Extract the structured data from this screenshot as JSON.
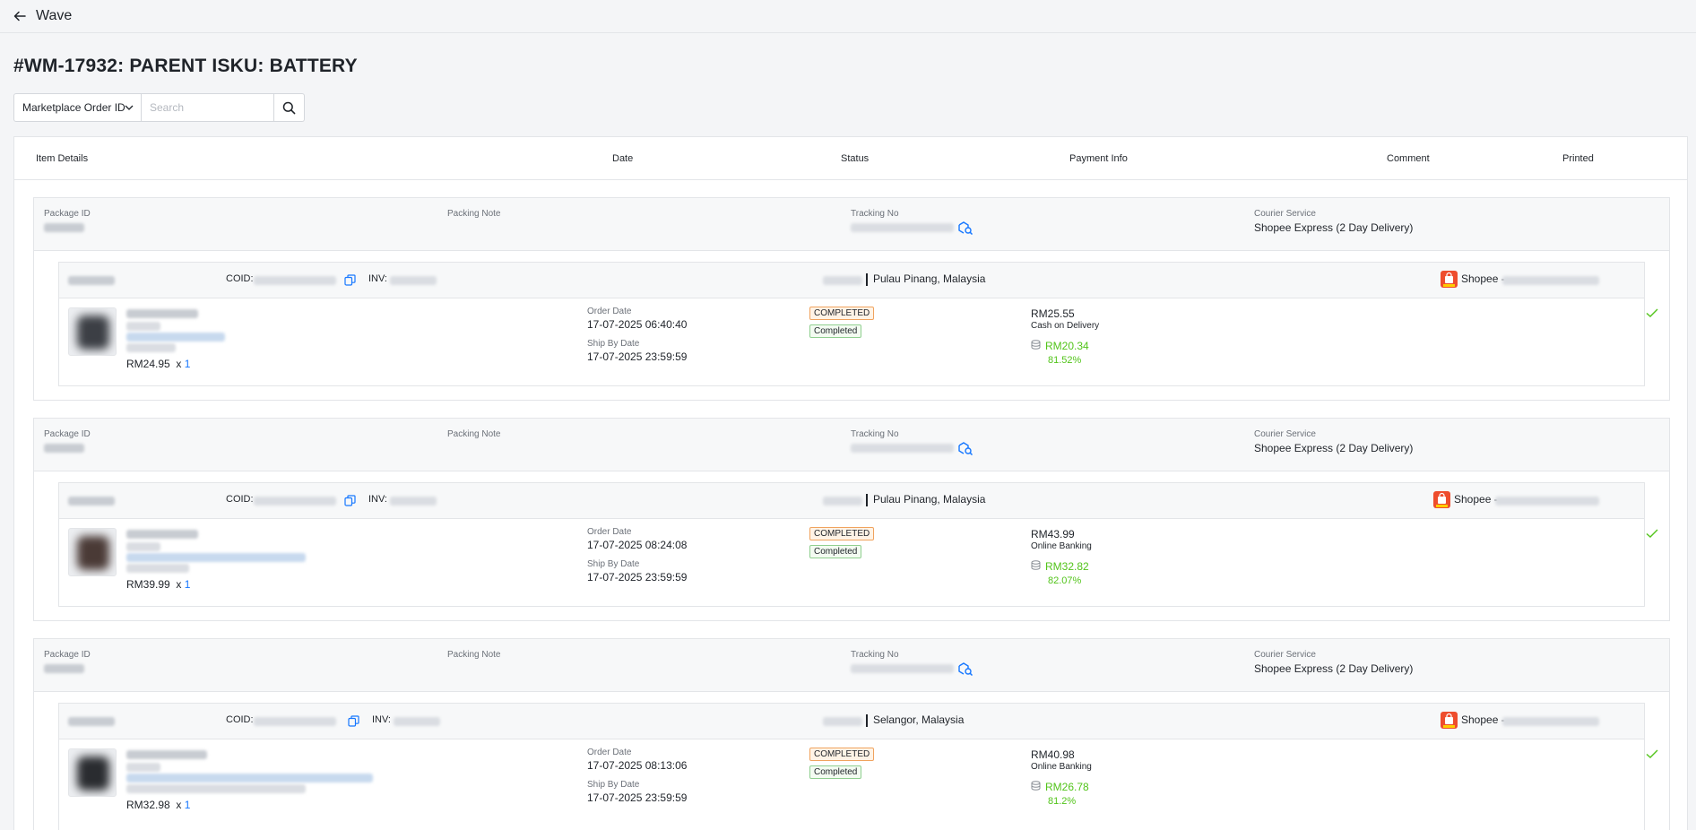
{
  "topbar": {
    "title": "Wave"
  },
  "page": {
    "title": "#WM-17932: PARENT ISKU: BATTERY"
  },
  "search": {
    "field_label": "Marketplace Order ID",
    "placeholder": "Search"
  },
  "table": {
    "columns": [
      "Item Details",
      "Date",
      "Status",
      "Payment Info",
      "Comment",
      "Printed"
    ]
  },
  "labels": {
    "package_id": "Package ID",
    "packing_note": "Packing Note",
    "tracking_no": "Tracking No",
    "courier_service": "Courier Service",
    "coid": "COID:",
    "inv": "INV:",
    "order_date": "Order Date",
    "ship_by_date": "Ship By Date",
    "qty_prefix": "x"
  },
  "packages": [
    {
      "courier": "Shopee Express (2 Day Delivery)",
      "location": "Pulau Pinang, Malaysia",
      "marketplace": "Shopee -",
      "item_price": "RM24.95",
      "qty": "1",
      "order_date": "17-07-2025 06:40:40",
      "ship_by_date": "17-07-2025 23:59:59",
      "status_marketplace": "COMPLETED",
      "status_internal": "Completed",
      "total": "RM25.55",
      "payment_method": "Cash on Delivery",
      "net": "RM20.34",
      "net_pct": "81.52%",
      "printed": true
    },
    {
      "courier": "Shopee Express (2 Day Delivery)",
      "location": "Pulau Pinang, Malaysia",
      "marketplace": "Shopee -",
      "item_price": "RM39.99",
      "qty": "1",
      "order_date": "17-07-2025 08:24:08",
      "ship_by_date": "17-07-2025 23:59:59",
      "status_marketplace": "COMPLETED",
      "status_internal": "Completed",
      "total": "RM43.99",
      "payment_method": "Online Banking",
      "net": "RM32.82",
      "net_pct": "82.07%",
      "printed": true
    },
    {
      "courier": "Shopee Express (2 Day Delivery)",
      "location": "Selangor, Malaysia",
      "marketplace": "Shopee -",
      "item_price": "RM32.98",
      "qty": "1",
      "order_date": "17-07-2025 08:13:06",
      "ship_by_date": "17-07-2025 23:59:59",
      "status_marketplace": "COMPLETED",
      "status_internal": "Completed",
      "total": "RM40.98",
      "payment_method": "Online Banking",
      "net": "RM26.78",
      "net_pct": "81.2%",
      "printed": true
    }
  ],
  "icons": {
    "back": "arrow-left-icon",
    "search": "search-icon",
    "tracking": "tracking-search-icon",
    "copy": "copy-icon",
    "marketplace": "shopee-icon",
    "printed": "check-icon",
    "net": "coin-stack-icon"
  },
  "colors": {
    "accent": "#1677ff",
    "success": "#52c41a",
    "warning_border": "#f0a35e",
    "shopee": "#ee4d2d"
  }
}
